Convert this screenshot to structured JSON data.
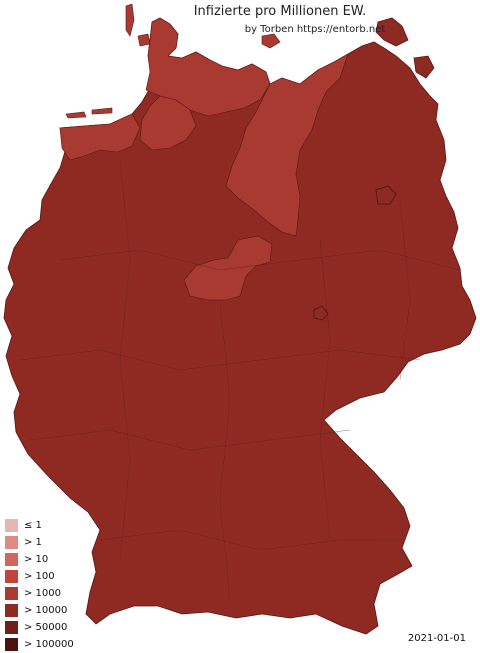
{
  "title": "Infizierte pro Millionen EW.",
  "credit": "by Torben https://entorb.net",
  "date": "2021-01-01",
  "legend": [
    {
      "label": "≤ 1",
      "color": "#e8b6b2"
    },
    {
      "label": "> 1",
      "color": "#dc8a83"
    },
    {
      "label": "> 10",
      "color": "#d0665d"
    },
    {
      "label": "> 100",
      "color": "#c2453b"
    },
    {
      "label": "> 1000",
      "color": "#a93a31"
    },
    {
      "label": "> 10000",
      "color": "#8f2a23"
    },
    {
      "label": "> 50000",
      "color": "#6f1e19"
    },
    {
      "label": "> 100000",
      "color": "#4a1210"
    }
  ],
  "colors": {
    "main_region": "#8f2a23",
    "lighter_region": "#a93a31",
    "border": "#5a1714"
  }
}
